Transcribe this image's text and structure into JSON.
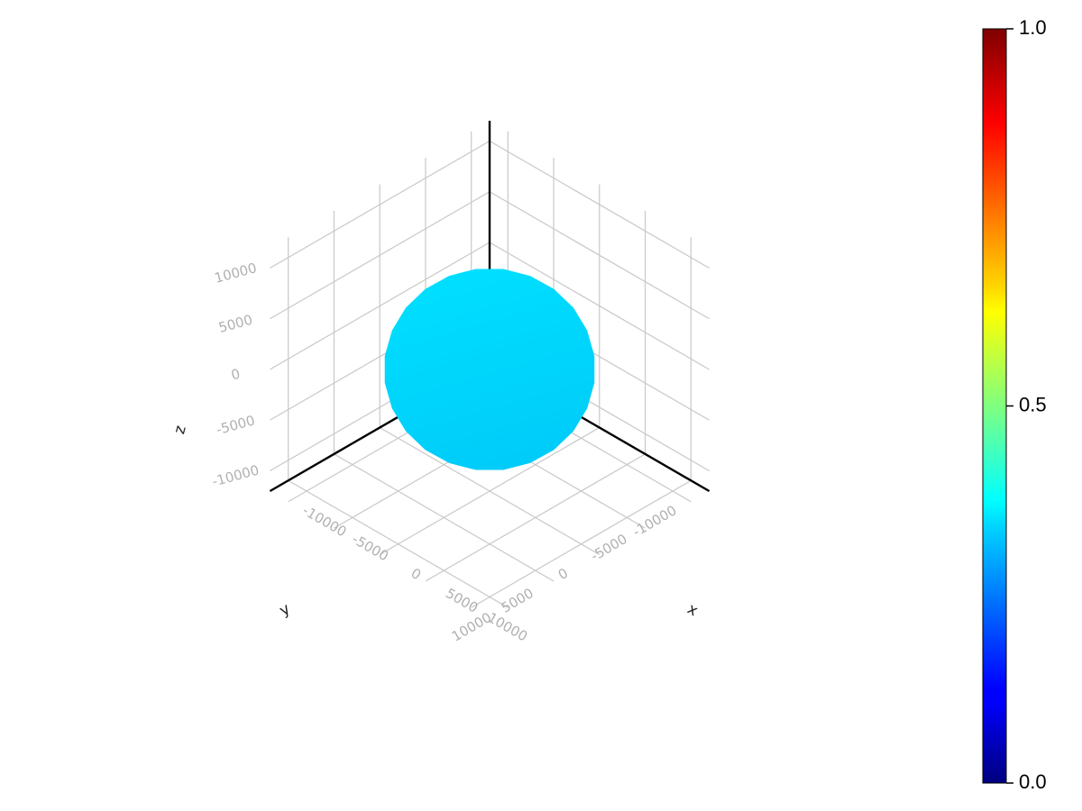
{
  "chart_data": {
    "type": "surface3d",
    "title": "",
    "description": "3D sphere rendered with a jet colormap and a vertical colorbar",
    "axes": {
      "x": {
        "label": "x",
        "range": [
          -12000,
          12000
        ],
        "ticks": [
          -10000,
          -5000,
          0,
          5000,
          10000
        ],
        "tick_labels": [
          "-10000",
          "-5000",
          "0",
          "5000",
          "10000"
        ]
      },
      "y": {
        "label": "y",
        "range": [
          -12000,
          12000
        ],
        "ticks": [
          -10000,
          -5000,
          0,
          5000,
          10000
        ],
        "tick_labels": [
          "-10000",
          "-5000",
          "0",
          "5000",
          "10000"
        ]
      },
      "z": {
        "label": "z",
        "range": [
          -12000,
          12000
        ],
        "ticks": [
          -10000,
          -5000,
          0,
          5000,
          10000
        ],
        "tick_labels": [
          "-10000",
          "-5000",
          "0",
          "5000",
          "10000"
        ]
      }
    },
    "grid": true,
    "series": [
      {
        "name": "sphere",
        "shape": "sphere",
        "center": [
          0,
          0,
          0
        ],
        "radius": 10000,
        "color_value": 0.33,
        "color": "#00cfff"
      }
    ],
    "colorbar": {
      "colormap": "jet",
      "limits": [
        0.0,
        1.0
      ],
      "ticks": [
        0.0,
        0.5,
        1.0
      ],
      "tick_labels": [
        "0.0",
        "0.5",
        "1.0"
      ],
      "position": "right"
    }
  }
}
